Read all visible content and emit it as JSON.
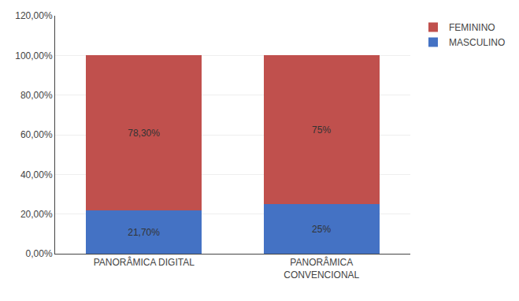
{
  "chart_data": {
    "type": "bar",
    "stacked": true,
    "categories": [
      "PANORÂMICA DIGITAL",
      "PANORÂMICA\nCONVENCIONAL"
    ],
    "series": [
      {
        "name": "MASCULINO",
        "color": "#4472C4",
        "values": [
          0.217,
          0.25
        ],
        "value_labels": [
          "21,70%",
          "25%"
        ]
      },
      {
        "name": "FEMININO",
        "color": "#C0504D",
        "values": [
          0.783,
          0.75
        ],
        "value_labels": [
          "78,30%",
          "75%"
        ]
      }
    ],
    "ylim": [
      0,
      1.2
    ],
    "yticks": [
      {
        "value": 0.0,
        "label": "0,00%"
      },
      {
        "value": 0.2,
        "label": "20,00%"
      },
      {
        "value": 0.4,
        "label": "40,00%"
      },
      {
        "value": 0.6,
        "label": "60,00%"
      },
      {
        "value": 0.8,
        "label": "80,00%"
      },
      {
        "value": 1.0,
        "label": "100,00%"
      },
      {
        "value": 1.2,
        "label": "120,00%"
      }
    ],
    "grid": true,
    "legend": "upper right",
    "data_labels": true
  }
}
